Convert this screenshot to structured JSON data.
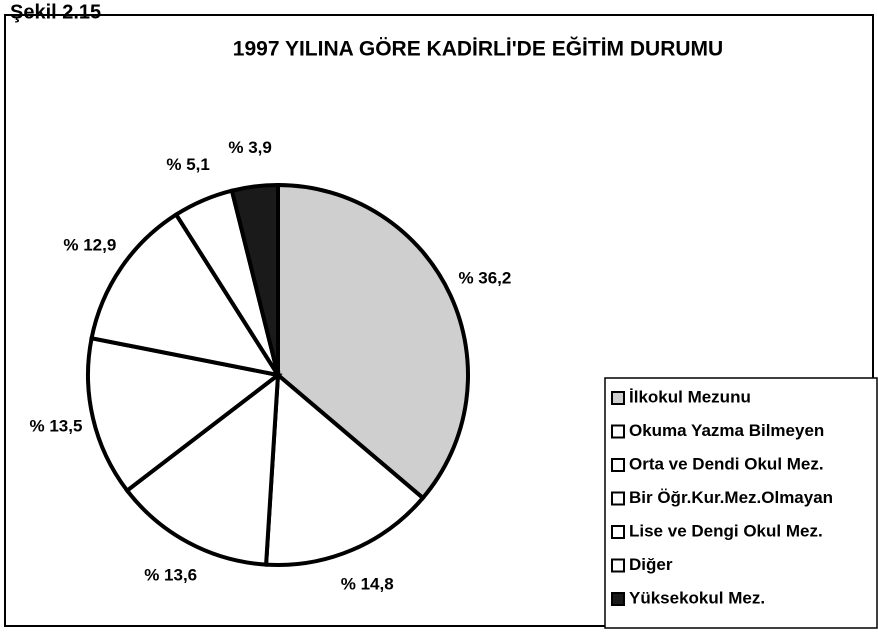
{
  "chart_data": {
    "type": "pie",
    "figure_label": "Şekil 2.15",
    "title": "1997 YILINA GÖRE KADİRLİ'DE EĞİTİM DURUMU",
    "categories": [
      "İlkokul Mezunu",
      "Okuma Yazma Bilmeyen",
      "Orta ve Dendi Okul Mez.",
      "Bir Öğr.Kur.Mez.Olmayan",
      "Lise ve Dengi Okul Mez.",
      "Diğer",
      "Yüksekokul Mez."
    ],
    "values": [
      36.2,
      14.8,
      13.6,
      13.5,
      12.9,
      5.1,
      3.9
    ],
    "value_labels": [
      "% 36,2",
      "% 14,8",
      "% 13,6",
      "% 13,5",
      "% 12,9",
      "% 5,1",
      "% 3,9"
    ],
    "colors": [
      "#cfcfcf",
      "#ffffff",
      "#ffffff",
      "#ffffff",
      "#ffffff",
      "#ffffff",
      "#1a1a1a"
    ]
  }
}
